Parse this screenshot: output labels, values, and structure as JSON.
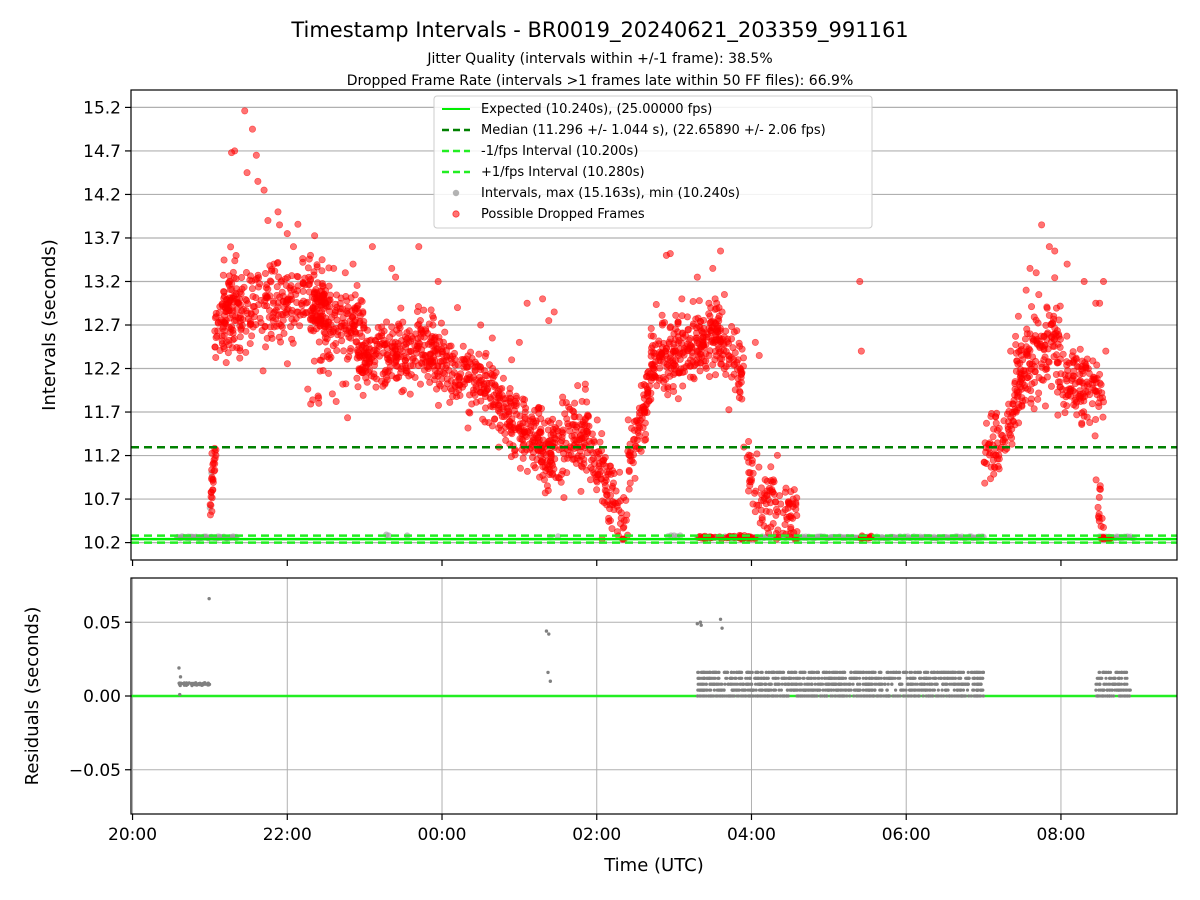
{
  "chart_data": [
    {
      "type": "scatter",
      "title": "Timestamp Intervals - BR0019_20240621_203359_991161",
      "subtitle_lines": [
        "Jitter Quality (intervals within +/-1 frame): 38.5%",
        "Dropped Frame Rate (intervals >1 frames late within 50 FF files): 66.9%"
      ],
      "xlabel": "",
      "ylabel": "Intervals (seconds)",
      "x_unit": "hours since 20:00 UTC",
      "xlim": [
        -0.02,
        13.5
      ],
      "ylim": [
        10.0,
        15.4
      ],
      "yticks": [
        10.2,
        10.7,
        11.2,
        11.7,
        12.2,
        12.7,
        13.2,
        13.7,
        14.2,
        14.7,
        15.2
      ],
      "ytick_labels": [
        "10.2",
        "10.7",
        "11.2",
        "11.7",
        "12.2",
        "12.7",
        "13.2",
        "13.7",
        "14.2",
        "14.7",
        "15.2"
      ],
      "grid": true,
      "legend_position": "top-center",
      "lines": [
        {
          "name": "Expected (10.240s), (25.00000 fps)",
          "y": 10.24,
          "color": "#00ee00",
          "style": "solid"
        },
        {
          "name": "Median (11.296 +/- 1.044 s), (22.65890 +/- 2.06 fps)",
          "y": 11.296,
          "color": "#008000",
          "style": "dashed"
        },
        {
          "name": "-1/fps Interval (10.200s)",
          "y": 10.2,
          "color": "#22ee22",
          "style": "dashed"
        },
        {
          "name": "+1/fps Interval (10.280s)",
          "y": 10.28,
          "color": "#22ee22",
          "style": "dashed"
        }
      ],
      "series": [
        {
          "name": "Intervals, max (15.163s), min (10.240s)",
          "color": "#999999",
          "x": [
            0.58,
            0.62,
            0.66,
            0.7,
            0.74,
            0.78,
            0.82,
            0.86,
            0.9,
            0.94,
            0.98,
            1.02,
            1.06,
            1.1,
            1.14,
            1.18,
            1.22,
            1.26,
            1.3,
            1.34,
            3.55,
            5.4,
            5.5,
            3.28,
            3.31,
            6.92,
            6.96,
            7.0,
            7.04,
            7.08,
            1.0,
            1.02
          ],
          "y": [
            10.26,
            10.25,
            10.26,
            10.26,
            10.25,
            10.26,
            10.26,
            10.25,
            10.26,
            10.26,
            10.25,
            10.26,
            10.26,
            10.25,
            10.26,
            10.26,
            10.25,
            10.26,
            10.26,
            10.25,
            10.28,
            10.26,
            10.27,
            10.29,
            10.28,
            10.27,
            10.28,
            10.28,
            10.27,
            10.28,
            10.6,
            11.0
          ]
        },
        {
          "name": "Possible Dropped Frames",
          "color": "#ff0000",
          "clusters": [
            {
              "x0": 1.0,
              "x1": 1.08,
              "y0": 10.6,
              "y1": 11.3,
              "n": 28,
              "sd": 0.15
            },
            {
              "x0": 1.05,
              "x1": 1.35,
              "y0": 12.5,
              "y1": 13.2,
              "n": 50,
              "sd": 0.25
            },
            {
              "x0": 1.15,
              "x1": 2.5,
              "y0": 12.8,
              "y1": 13.1,
              "n": 300,
              "sd": 0.22
            },
            {
              "x0": 2.3,
              "x1": 3.0,
              "y0": 12.8,
              "y1": 12.7,
              "n": 150,
              "sd": 0.18
            },
            {
              "x0": 2.25,
              "x1": 2.9,
              "y0": 12.0,
              "y1": 12.6,
              "n": 30,
              "sd": 0.3
            },
            {
              "x0": 2.9,
              "x1": 3.9,
              "y0": 12.3,
              "y1": 12.4,
              "n": 260,
              "sd": 0.2
            },
            {
              "x0": 3.9,
              "x1": 4.7,
              "y0": 12.3,
              "y1": 11.9,
              "n": 180,
              "sd": 0.2
            },
            {
              "x0": 4.7,
              "x1": 5.3,
              "y0": 11.8,
              "y1": 11.3,
              "n": 160,
              "sd": 0.2
            },
            {
              "x0": 5.3,
              "x1": 5.9,
              "y0": 11.2,
              "y1": 11.5,
              "n": 170,
              "sd": 0.22
            },
            {
              "x0": 5.9,
              "x1": 6.4,
              "y0": 11.3,
              "y1": 10.3,
              "n": 100,
              "sd": 0.2
            },
            {
              "x0": 6.4,
              "x1": 6.7,
              "y0": 11.0,
              "y1": 12.1,
              "n": 80,
              "sd": 0.18
            },
            {
              "x0": 6.7,
              "x1": 7.6,
              "y0": 12.3,
              "y1": 12.6,
              "n": 270,
              "sd": 0.18
            },
            {
              "x0": 7.6,
              "x1": 7.9,
              "y0": 12.4,
              "y1": 12.2,
              "n": 60,
              "sd": 0.2
            },
            {
              "x0": 7.9,
              "x1": 8.2,
              "y0": 11.0,
              "y1": 10.7,
              "n": 40,
              "sd": 0.25
            },
            {
              "x0": 8.2,
              "x1": 8.6,
              "y0": 10.8,
              "y1": 10.3,
              "n": 70,
              "sd": 0.2
            },
            {
              "x0": 7.3,
              "x1": 8.0,
              "y0": 10.26,
              "y1": 10.26,
              "n": 40,
              "sd": 0.01
            },
            {
              "x0": 7.85,
              "x1": 8.05,
              "y0": 10.26,
              "y1": 10.26,
              "n": 14,
              "sd": 0.01
            },
            {
              "x0": 9.4,
              "x1": 9.55,
              "y0": 10.26,
              "y1": 10.26,
              "n": 12,
              "sd": 0.01
            },
            {
              "x0": 11.0,
              "x1": 11.5,
              "y0": 11.1,
              "y1": 11.9,
              "n": 90,
              "sd": 0.2
            },
            {
              "x0": 11.4,
              "x1": 12.0,
              "y0": 12.1,
              "y1": 12.6,
              "n": 150,
              "sd": 0.25
            },
            {
              "x0": 11.95,
              "x1": 12.55,
              "y0": 12.1,
              "y1": 11.9,
              "n": 130,
              "sd": 0.2
            },
            {
              "x0": 12.45,
              "x1": 12.55,
              "y0": 10.9,
              "y1": 10.35,
              "n": 14,
              "sd": 0.15
            },
            {
              "x0": 12.5,
              "x1": 12.65,
              "y0": 10.25,
              "y1": 10.25,
              "n": 14,
              "sd": 0.005
            }
          ],
          "outliers": {
            "x": [
              1.45,
              1.55,
              1.32,
              1.28,
              1.6,
              1.48,
              1.62,
              1.7,
              1.88,
              1.75,
              1.9,
              2.0,
              2.08,
              2.3,
              2.45,
              2.6,
              2.75,
              2.85,
              3.1,
              3.35,
              3.4,
              3.7,
              3.95,
              4.2,
              4.5,
              4.65,
              4.9,
              5.0,
              5.1,
              5.3,
              5.38,
              5.45,
              7.1,
              7.3,
              7.45,
              7.62,
              6.9,
              6.95,
              7.5,
              7.6,
              7.53,
              7.65,
              7.55,
              7.58,
              8.05,
              8.1,
              9.4,
              9.42,
              11.35,
              11.45,
              11.55,
              11.6,
              11.68,
              11.75,
              11.85,
              11.92,
              12.08,
              12.3,
              12.45,
              12.5,
              12.55,
              12.58
            ],
            "y": [
              15.16,
              14.95,
              14.7,
              14.68,
              14.65,
              14.45,
              14.35,
              14.25,
              14.0,
              13.9,
              13.85,
              13.75,
              13.6,
              13.5,
              13.45,
              13.35,
              13.3,
              13.4,
              13.6,
              13.35,
              13.25,
              13.6,
              13.2,
              12.9,
              12.7,
              12.55,
              12.3,
              12.5,
              12.95,
              13.0,
              12.75,
              12.85,
              13.0,
              13.25,
              12.95,
              12.85,
              13.5,
              13.52,
              13.35,
              13.55,
              13.0,
              13.05,
              12.95,
              12.9,
              12.5,
              12.35,
              13.2,
              12.4,
              12.4,
              12.8,
              13.1,
              13.35,
              13.3,
              13.85,
              13.6,
              13.55,
              13.4,
              13.2,
              12.95,
              12.95,
              13.2,
              12.4
            ]
          }
        }
      ]
    },
    {
      "type": "scatter",
      "title": "",
      "xlabel": "Time (UTC)",
      "ylabel": "Residuals (seconds)",
      "xlim": [
        -0.02,
        13.5
      ],
      "ylim": [
        -0.08,
        0.08
      ],
      "yticks": [
        -0.05,
        0.0,
        0.05
      ],
      "ytick_labels": [
        "−0.05",
        "0.00",
        "0.05"
      ],
      "xticks": [
        0,
        2,
        4,
        6,
        8,
        10,
        12
      ],
      "xtick_labels": [
        "20:00",
        "22:00",
        "00:00",
        "02:00",
        "04:00",
        "06:00",
        "08:00"
      ],
      "grid": true,
      "lines": [
        {
          "name": "zero",
          "y": 0.0,
          "color": "#22ee22",
          "style": "solid"
        }
      ],
      "series": [
        {
          "name": "",
          "color": "#808080",
          "bands": [
            {
              "x0": 0.6,
              "x1": 1.0,
              "y": 0.008,
              "yspread": 0.002,
              "n": 60
            },
            {
              "x0": 7.3,
              "x1": 11.0,
              "y": 0.008,
              "yspread": 0.016,
              "n": 1200
            },
            {
              "x0": 12.45,
              "x1": 12.9,
              "y": 0.008,
              "yspread": 0.016,
              "n": 130
            }
          ],
          "points": {
            "x": [
              0.6,
              0.61,
              0.62,
              0.99,
              5.35,
              5.38,
              5.37,
              5.4,
              7.3,
              7.35,
              7.34,
              7.6,
              7.62
            ],
            "y": [
              0.019,
              0.001,
              0.013,
              0.066,
              0.044,
              0.042,
              0.016,
              0.01,
              0.049,
              0.048,
              0.05,
              0.052,
              0.046
            ]
          }
        }
      ]
    }
  ]
}
